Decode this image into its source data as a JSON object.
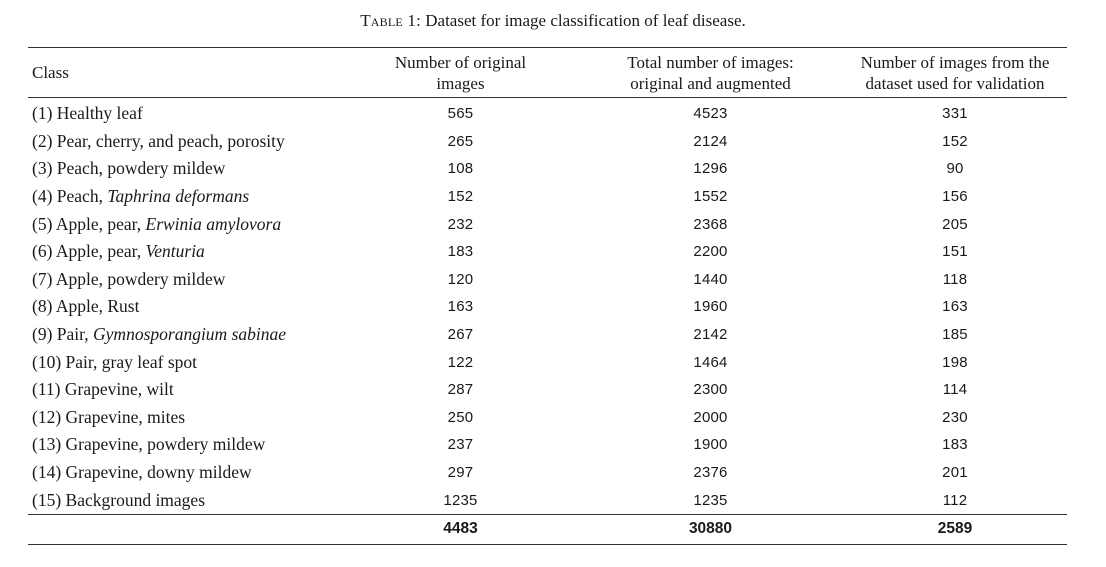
{
  "caption": {
    "label": "Table 1:",
    "text": " Dataset for image classification of leaf disease."
  },
  "table": {
    "headers": [
      "Class",
      "Number of original images",
      "Total number of images: original and augmented",
      "Number of images from the dataset used for validation"
    ],
    "header_lines": [
      [
        "Class"
      ],
      [
        "Number of original",
        "images"
      ],
      [
        "Total number of images:",
        "original and augmented"
      ],
      [
        "Number of images from the",
        "dataset used for validation"
      ]
    ],
    "rows": [
      {
        "class_prefix": "(1) Healthy leaf",
        "class_italic": "",
        "original": "565",
        "total": "4523",
        "validation": "331"
      },
      {
        "class_prefix": "(2) Pear, cherry, and peach, porosity",
        "class_italic": "",
        "original": "265",
        "total": "2124",
        "validation": "152"
      },
      {
        "class_prefix": "(3) Peach, powdery mildew",
        "class_italic": "",
        "original": "108",
        "total": "1296",
        "validation": "90"
      },
      {
        "class_prefix": "(4) Peach, ",
        "class_italic": "Taphrina deformans",
        "original": "152",
        "total": "1552",
        "validation": "156"
      },
      {
        "class_prefix": "(5) Apple, pear, ",
        "class_italic": "Erwinia amylovora",
        "original": "232",
        "total": "2368",
        "validation": "205"
      },
      {
        "class_prefix": "(6) Apple, pear, ",
        "class_italic": "Venturia",
        "original": "183",
        "total": "2200",
        "validation": "151"
      },
      {
        "class_prefix": "(7) Apple, powdery mildew",
        "class_italic": "",
        "original": "120",
        "total": "1440",
        "validation": "118"
      },
      {
        "class_prefix": "(8) Apple, Rust",
        "class_italic": "",
        "original": "163",
        "total": "1960",
        "validation": "163"
      },
      {
        "class_prefix": "(9) Pair, ",
        "class_italic": "Gymnosporangium sabinae",
        "original": "267",
        "total": "2142",
        "validation": "185"
      },
      {
        "class_prefix": "(10) Pair, gray leaf spot",
        "class_italic": "",
        "original": "122",
        "total": "1464",
        "validation": "198"
      },
      {
        "class_prefix": "(11) Grapevine, wilt",
        "class_italic": "",
        "original": "287",
        "total": "2300",
        "validation": "114"
      },
      {
        "class_prefix": "(12) Grapevine, mites",
        "class_italic": "",
        "original": "250",
        "total": "2000",
        "validation": "230"
      },
      {
        "class_prefix": "(13) Grapevine, powdery mildew",
        "class_italic": "",
        "original": "237",
        "total": "1900",
        "validation": "183"
      },
      {
        "class_prefix": "(14) Grapevine, downy mildew",
        "class_italic": "",
        "original": "297",
        "total": "2376",
        "validation": "201"
      },
      {
        "class_prefix": "(15) Background images",
        "class_italic": "",
        "original": "1235",
        "total": "1235",
        "validation": "112"
      }
    ],
    "totals": {
      "original": "4483",
      "total": "30880",
      "validation": "2589"
    }
  }
}
